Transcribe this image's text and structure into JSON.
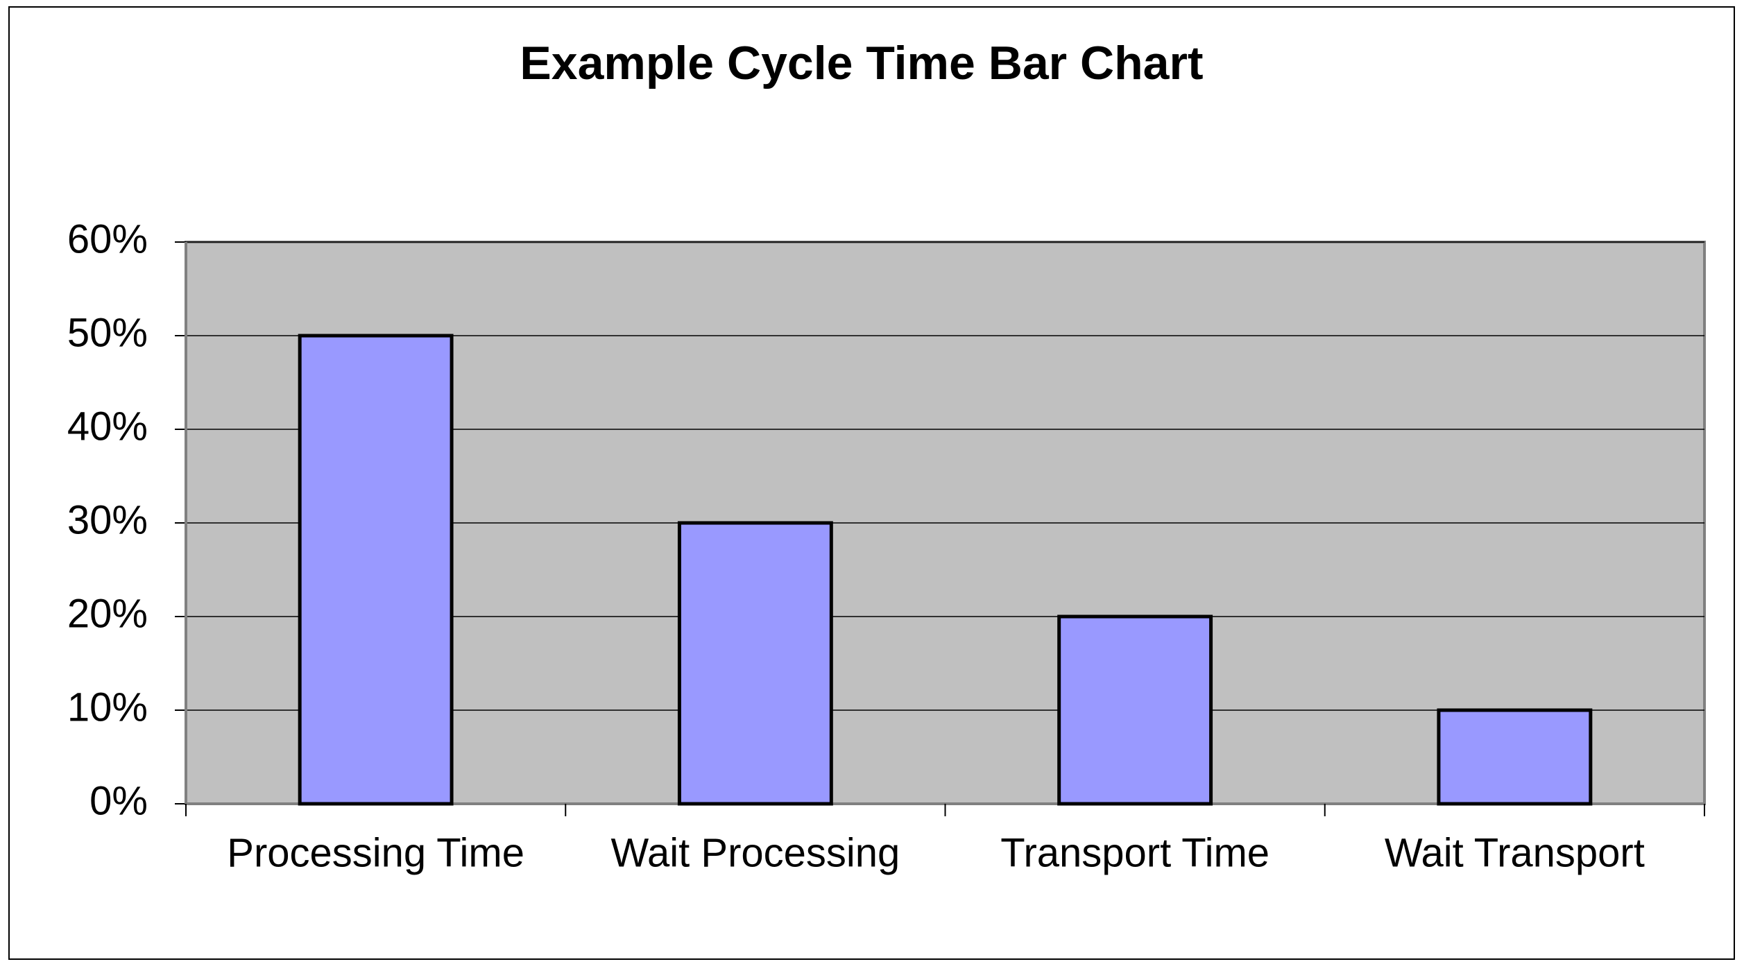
{
  "chart_data": {
    "type": "bar",
    "title": "Example Cycle Time Bar Chart",
    "categories": [
      "Processing Time",
      "Wait Processing",
      "Transport Time",
      "Wait Transport"
    ],
    "values": [
      50,
      30,
      20,
      10
    ],
    "color": "#9999ff",
    "ylim": [
      0,
      60
    ],
    "yticks": [
      {
        "value": 0,
        "label": "0%"
      },
      {
        "value": 10,
        "label": "10%"
      },
      {
        "value": 20,
        "label": "20%"
      },
      {
        "value": 30,
        "label": "30%"
      },
      {
        "value": 40,
        "label": "40%"
      },
      {
        "value": 50,
        "label": "50%"
      },
      {
        "value": 60,
        "label": "60%"
      }
    ],
    "grid": true
  }
}
